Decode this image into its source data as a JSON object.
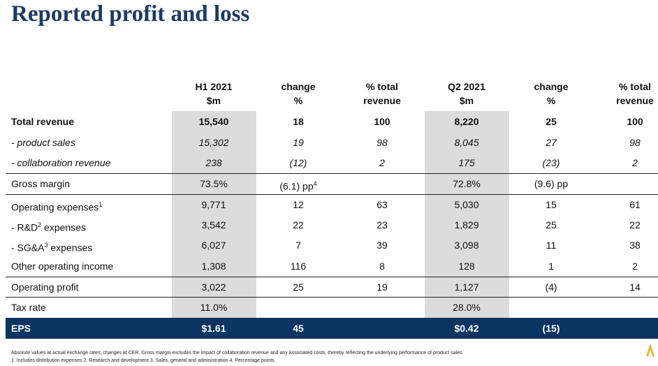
{
  "title": "Reported profit and loss",
  "headers": [
    {
      "line1": "H1 2021",
      "line2": "$m"
    },
    {
      "line1": "change",
      "line2": "%"
    },
    {
      "line1": "% total",
      "line2": "revenue"
    },
    {
      "line1": "Q2 2021",
      "line2": "$m"
    },
    {
      "line1": "change",
      "line2": "%"
    },
    {
      "line1": "% total",
      "line2": "revenue"
    }
  ],
  "rows": [
    {
      "label": "Total revenue",
      "values": [
        "15,540",
        "18",
        "100",
        "8,220",
        "25",
        "100"
      ]
    },
    {
      "label": "- product sales",
      "values": [
        "15,302",
        "19",
        "98",
        "8,045",
        "27",
        "98"
      ]
    },
    {
      "label": "- collaboration revenue",
      "values": [
        "238",
        "(12)",
        "2",
        "175",
        "(23)",
        "2"
      ]
    },
    {
      "label": "Gross margin",
      "values": [
        "73.5%",
        "(6.1) pp",
        "",
        "72.8%",
        "(9.6) pp",
        ""
      ],
      "sup_change": "4"
    },
    {
      "label": "Operating expenses",
      "label_sup": "1",
      "values": [
        "9,771",
        "12",
        "63",
        "5,030",
        "15",
        "61"
      ]
    },
    {
      "label_pre": "- R&D",
      "label_sup": "2",
      "label_post": " expenses",
      "values": [
        "3,542",
        "22",
        "23",
        "1,829",
        "25",
        "22"
      ]
    },
    {
      "label_pre": "- SG&A",
      "label_sup": "3",
      "label_post": " expenses",
      "values": [
        "6,027",
        "7",
        "39",
        "3,098",
        "11",
        "38"
      ]
    },
    {
      "label": "Other operating income",
      "values": [
        "1,308",
        "116",
        "8",
        "128",
        "1",
        "2"
      ]
    },
    {
      "label": "Operating profit",
      "values": [
        "3,022",
        "25",
        "19",
        "1,127",
        "(4)",
        "14"
      ]
    },
    {
      "label": "Tax rate",
      "values": [
        "11.0%",
        "",
        "",
        "28.0%",
        "",
        ""
      ]
    },
    {
      "label": "EPS",
      "values": [
        "$1.61",
        "45",
        "",
        "$0.42",
        "(15)",
        ""
      ]
    }
  ],
  "footnotes": {
    "line1": "Absolute values at actual exchange rates; changes at CER. Gross margin excludes the impact of collaboration revenue and any associated costs, thereby reflecting the underlying performance of product sales.",
    "line2": "1. Includes distribution expenses  2. Research and development  3. Sales, general and administration  4. Percentage points."
  },
  "colors": {
    "title": "#1c3a63",
    "eps_band": "#0d3563",
    "shade": "#dcdcdc",
    "logo": "#e8b230"
  },
  "logo_icon": "brand-mark-icon"
}
